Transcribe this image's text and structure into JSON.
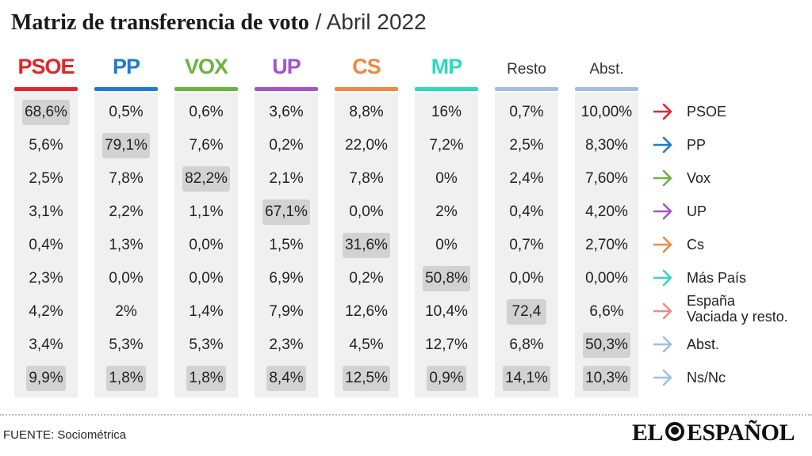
{
  "title": {
    "strong": "Matriz de transferencia de voto",
    "light": "/ Abril 2022"
  },
  "chart_data": {
    "type": "table",
    "columns": [
      {
        "label": "PSOE",
        "color": "#e3242b",
        "style": "party"
      },
      {
        "label": "PP",
        "color": "#1f7ad1",
        "style": "party"
      },
      {
        "label": "VOX",
        "color": "#6cb33f",
        "style": "party"
      },
      {
        "label": "UP",
        "color": "#a454c8",
        "style": "party"
      },
      {
        "label": "CS",
        "color": "#f08743",
        "style": "party"
      },
      {
        "label": "MP",
        "color": "#2ed8c3",
        "style": "party"
      },
      {
        "label": "Resto",
        "color": "#9ebfe0",
        "style": "other"
      },
      {
        "label": "Abst.",
        "color": "#9ebfe0",
        "style": "other"
      }
    ],
    "rows": [
      {
        "label": "PSOE",
        "arrow_color": "#e3242b",
        "values": [
          "68,6%",
          "0,5%",
          "0,6%",
          "3,6%",
          "8,8%",
          "16%",
          "0,7%",
          "10,00%"
        ],
        "highlight": [
          0
        ]
      },
      {
        "label": "PP",
        "arrow_color": "#1f7ad1",
        "values": [
          "5,6%",
          "79,1%",
          "7,6%",
          "0,2%",
          "22,0%",
          "7,2%",
          "2,5%",
          "8,30%"
        ],
        "highlight": [
          1
        ]
      },
      {
        "label": "Vox",
        "arrow_color": "#6cb33f",
        "values": [
          "2,5%",
          "7,8%",
          "82,2%",
          "2,1%",
          "7,8%",
          "0%",
          "2,4%",
          "7,60%"
        ],
        "highlight": [
          2
        ]
      },
      {
        "label": "UP",
        "arrow_color": "#a454c8",
        "values": [
          "3,1%",
          "2,2%",
          "1,1%",
          "67,1%",
          "0,0%",
          "2%",
          "0,4%",
          "4,20%"
        ],
        "highlight": [
          3
        ]
      },
      {
        "label": "Cs",
        "arrow_color": "#f08743",
        "values": [
          "0,4%",
          "1,3%",
          "0,0%",
          "1,5%",
          "31,6%",
          "0%",
          "0,7%",
          "2,70%"
        ],
        "highlight": [
          4
        ]
      },
      {
        "label": "Más País",
        "arrow_color": "#2ed8c3",
        "values": [
          "2,3%",
          "0,0%",
          "0,0%",
          "6,9%",
          "0,2%",
          "50,8%",
          "0,0%",
          "0,00%"
        ],
        "highlight": [
          5
        ]
      },
      {
        "label": "España\nVaciada y resto.",
        "arrow_color": "#f08a8a",
        "values": [
          "4,2%",
          "2%",
          "1,4%",
          "7,9%",
          "12,6%",
          "10,4%",
          "72,4",
          "6,6%"
        ],
        "highlight": [
          6
        ]
      },
      {
        "label": "Abst.",
        "arrow_color": "#9ebfe0",
        "values": [
          "3,4%",
          "5,3%",
          "5,3%",
          "2,3%",
          "4,5%",
          "12,7%",
          "6,8%",
          "50,3%"
        ],
        "highlight": [
          7
        ]
      },
      {
        "label": "Ns/Nc",
        "arrow_color": "#9ebfe0",
        "values": [
          "9,9%",
          "1,8%",
          "1,8%",
          "8,4%",
          "12,5%",
          "0,9%",
          "14,1%",
          "10,3%"
        ],
        "highlight": [
          0,
          1,
          2,
          3,
          4,
          5,
          6,
          7
        ]
      }
    ]
  },
  "footer": {
    "source": "FUENTE: Sociométrica",
    "logo_left": "EL",
    "logo_right": "ESPAÑOL"
  }
}
